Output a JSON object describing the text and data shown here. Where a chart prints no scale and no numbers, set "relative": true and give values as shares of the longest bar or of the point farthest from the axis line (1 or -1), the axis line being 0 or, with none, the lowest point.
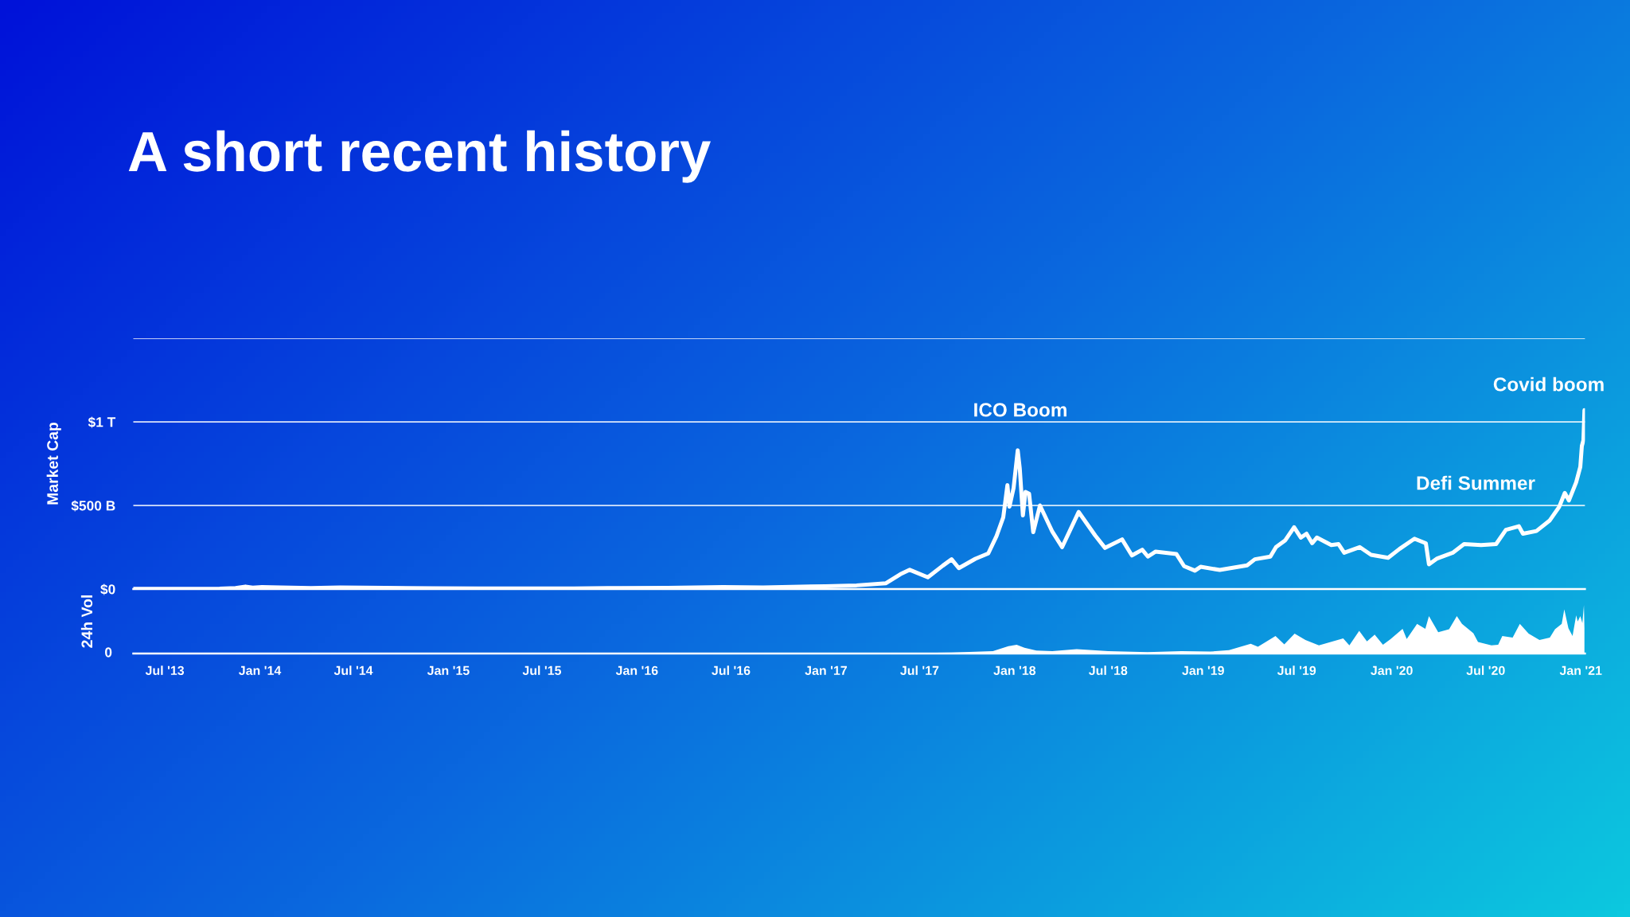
{
  "chart_data": [
    {
      "type": "line",
      "title": "A short recent history",
      "ylabel": "Market Cap",
      "color": "#ffffff",
      "x": [
        "2013-05-01",
        "2013-08-01",
        "2013-10-15",
        "2013-11-15",
        "2013-12-04",
        "2013-12-18",
        "2014-01-05",
        "2014-02-10",
        "2014-04-10",
        "2014-06-05",
        "2014-09-01",
        "2014-12-01",
        "2015-03-01",
        "2015-06-01",
        "2015-09-01",
        "2015-12-01",
        "2016-03-01",
        "2016-06-15",
        "2016-09-01",
        "2016-12-31",
        "2017-03-01",
        "2017-04-27",
        "2017-05-25",
        "2017-06-12",
        "2017-07-17",
        "2017-08-15",
        "2017-09-01",
        "2017-09-15",
        "2017-10-17",
        "2017-11-11",
        "2017-11-27",
        "2017-12-10",
        "2017-12-18",
        "2017-12-22",
        "2017-12-30",
        "2018-01-07",
        "2018-01-11",
        "2018-01-17",
        "2018-01-22",
        "2018-01-29",
        "2018-02-06",
        "2018-02-19",
        "2018-03-15",
        "2018-04-03",
        "2018-05-05",
        "2018-06-06",
        "2018-06-25",
        "2018-07-28",
        "2018-08-16",
        "2018-09-05",
        "2018-09-16",
        "2018-10-01",
        "2018-11-10",
        "2018-11-25",
        "2018-12-16",
        "2018-12-27",
        "2019-02-02",
        "2019-03-27",
        "2019-04-11",
        "2019-05-11",
        "2019-05-22",
        "2019-06-09",
        "2019-06-26",
        "2019-07-09",
        "2019-07-20",
        "2019-07-31",
        "2019-08-09",
        "2019-09-06",
        "2019-09-20",
        "2019-10-01",
        "2019-10-31",
        "2019-11-22",
        "2019-12-25",
        "2020-01-16",
        "2020-02-14",
        "2020-03-07",
        "2020-03-13",
        "2020-03-29",
        "2020-04-28",
        "2020-05-20",
        "2020-06-22",
        "2020-07-21",
        "2020-08-09",
        "2020-09-03",
        "2020-09-11",
        "2020-10-07",
        "2020-11-02",
        "2020-11-20",
        "2020-12-01",
        "2020-12-09",
        "2020-12-23",
        "2020-12-31",
        "2021-01-03",
        "2021-01-06",
        "2021-01-08"
      ],
      "values": [
        1000000000.0,
        1000000000.0,
        2000000000.0,
        6000000000.0,
        15000000000.0,
        8000000000.0,
        12000000000.0,
        10000000000.0,
        6000000000.0,
        9000000000.0,
        7000000000.0,
        5000000000.0,
        4000000000.0,
        4000000000.0,
        4000000000.0,
        6000000000.0,
        7000000000.0,
        12000000000.0,
        10000000000.0,
        17000000000.0,
        22000000000.0,
        35000000000.0,
        89000000000.0,
        115000000000.0,
        70000000000.0,
        140000000000.0,
        178000000000.0,
        125000000000.0,
        181000000000.0,
        213000000000.0,
        317000000000.0,
        429000000000.0,
        621000000000.0,
        493000000000.0,
        605000000000.0,
        830000000000.0,
        720000000000.0,
        440000000000.0,
        581000000000.0,
        570000000000.0,
        340000000000.0,
        500000000000.0,
        343000000000.0,
        251000000000.0,
        461000000000.0,
        320000000000.0,
        246000000000.0,
        297000000000.0,
        201000000000.0,
        235000000000.0,
        194000000000.0,
        224000000000.0,
        210000000000.0,
        137000000000.0,
        110000000000.0,
        133000000000.0,
        114000000000.0,
        142000000000.0,
        178000000000.0,
        194000000000.0,
        251000000000.0,
        292000000000.0,
        370000000000.0,
        308000000000.0,
        331000000000.0,
        274000000000.0,
        308000000000.0,
        263000000000.0,
        269000000000.0,
        217000000000.0,
        251000000000.0,
        205000000000.0,
        187000000000.0,
        240000000000.0,
        301000000000.0,
        274000000000.0,
        148000000000.0,
        183000000000.0,
        217000000000.0,
        269000000000.0,
        263000000000.0,
        269000000000.0,
        354000000000.0,
        376000000000.0,
        331000000000.0,
        347000000000.0,
        411000000000.0,
        491000000000.0,
        575000000000.0,
        530000000000.0,
        639000000000.0,
        731000000000.0,
        856000000000.0,
        890000000000.0,
        1070000000000.0
      ],
      "xlim": [
        "2013-05-01",
        "2021-01-09"
      ],
      "ylim": [
        0,
        1500000000000.0
      ],
      "yticks": [
        {
          "value": 0,
          "label": "$0"
        },
        {
          "value": 500000000000.0,
          "label": "$500 B"
        },
        {
          "value": 1000000000000.0,
          "label": "$1 T"
        },
        {
          "value": 1500000000000.0,
          "label": null
        }
      ],
      "grid": "y",
      "tick_labels": "y",
      "annotations": [
        "ICO Boom",
        "Defi Summer",
        "Covid boom"
      ]
    },
    {
      "type": "area",
      "relative": true,
      "ylabel": "24h Vol",
      "color": "#ffffff",
      "x": [
        "2013-05-01",
        "2013-12-01",
        "2014-06-01",
        "2017-04-01",
        "2017-06-01",
        "2017-09-01",
        "2017-11-20",
        "2017-12-20",
        "2018-01-05",
        "2018-01-20",
        "2018-02-12",
        "2018-03-15",
        "2018-05-01",
        "2018-07-01",
        "2018-09-15",
        "2018-11-20",
        "2019-01-15",
        "2019-02-20",
        "2019-04-03",
        "2019-04-17",
        "2019-05-21",
        "2019-06-07",
        "2019-06-27",
        "2019-07-18",
        "2019-08-13",
        "2019-09-29",
        "2019-10-11",
        "2019-10-30",
        "2019-11-14",
        "2019-11-29",
        "2019-12-15",
        "2019-12-30",
        "2020-01-22",
        "2020-01-30",
        "2020-02-19",
        "2020-03-06",
        "2020-03-13",
        "2020-03-31",
        "2020-04-21",
        "2020-05-06",
        "2020-05-16",
        "2020-06-07",
        "2020-06-16",
        "2020-07-12",
        "2020-07-25",
        "2020-08-02",
        "2020-08-22",
        "2020-09-05",
        "2020-09-22",
        "2020-10-13",
        "2020-11-02",
        "2020-11-12",
        "2020-11-25",
        "2020-11-30",
        "2020-12-08",
        "2020-12-16",
        "2020-12-23",
        "2020-12-26",
        "2020-12-31",
        "2021-01-04",
        "2021-01-07",
        "2021-01-08"
      ],
      "values": [
        0,
        0.01,
        0,
        0.01,
        0.01,
        0.02,
        0.05,
        0.15,
        0.18,
        0.12,
        0.06,
        0.05,
        0.09,
        0.05,
        0.03,
        0.05,
        0.04,
        0.07,
        0.2,
        0.14,
        0.36,
        0.19,
        0.41,
        0.28,
        0.17,
        0.31,
        0.17,
        0.47,
        0.25,
        0.39,
        0.18,
        0.3,
        0.51,
        0.3,
        0.61,
        0.51,
        0.77,
        0.44,
        0.5,
        0.77,
        0.61,
        0.42,
        0.24,
        0.17,
        0.18,
        0.36,
        0.33,
        0.61,
        0.41,
        0.28,
        0.33,
        0.5,
        0.61,
        0.91,
        0.52,
        0.36,
        0.79,
        0.66,
        0.77,
        0.63,
        1,
        0.53
      ],
      "xlim": [
        "2013-05-01",
        "2021-01-09"
      ],
      "annotations": [
        "0"
      ],
      "xticks": [
        {
          "value": "2013-07-01",
          "label": "Jul '13"
        },
        {
          "value": "2014-01-01",
          "label": "Jan '14"
        },
        {
          "value": "2014-07-01",
          "label": "Jul '14"
        },
        {
          "value": "2015-01-01",
          "label": "Jan '15"
        },
        {
          "value": "2015-07-01",
          "label": "Jul '15"
        },
        {
          "value": "2016-01-01",
          "label": "Jan '16"
        },
        {
          "value": "2016-07-01",
          "label": "Jul '16"
        },
        {
          "value": "2017-01-01",
          "label": "Jan '17"
        },
        {
          "value": "2017-07-01",
          "label": "Jul '17"
        },
        {
          "value": "2018-01-01",
          "label": "Jan '18"
        },
        {
          "value": "2018-07-01",
          "label": "Jul '18"
        },
        {
          "value": "2019-01-01",
          "label": "Jan '19"
        },
        {
          "value": "2019-07-01",
          "label": "Jul '19"
        },
        {
          "value": "2020-01-01",
          "label": "Jan '20"
        },
        {
          "value": "2020-07-01",
          "label": "Jul '20"
        },
        {
          "value": "2021-01-01",
          "label": "Jan '21"
        }
      ]
    }
  ]
}
